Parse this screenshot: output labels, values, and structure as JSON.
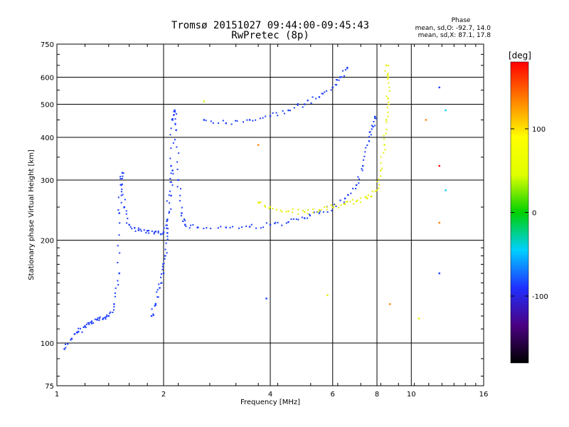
{
  "chart_data": {
    "type": "scatter",
    "title": "Tromsø 20151027 09:44:00-09:45:43",
    "subtitle": "RwPretec (8p)",
    "xlabel": "Frequency [MHz]",
    "ylabel": "Stationary phase Virtual Height [km]",
    "x_scale": "log2",
    "y_scale": "log",
    "xlim": [
      1,
      16
    ],
    "ylim": [
      75,
      750
    ],
    "x_ticks": [
      1,
      2,
      4,
      6,
      8,
      10,
      16
    ],
    "y_ticks": [
      75,
      100,
      200,
      300,
      400,
      500,
      600,
      750
    ],
    "grid": true,
    "phase_info": {
      "title": "Phase",
      "line_o": "mean, sd,O: -92.7, 14.0",
      "line_x": "mean, sd,X:  87.1, 17.8"
    },
    "colorbar": {
      "label": "[deg]",
      "ticks": [
        100,
        0,
        -100
      ],
      "range": [
        -180,
        180
      ],
      "colors": [
        "#000000",
        "#4b0082",
        "#2030ff",
        "#00d0ff",
        "#00d000",
        "#e0ff00",
        "#ffff00",
        "#ff8000",
        "#ff0000"
      ]
    },
    "series": [
      {
        "color": "#1a3cff",
        "x": [
          1.05,
          1.1,
          1.15,
          1.2,
          1.25,
          1.3,
          1.35,
          1.4,
          1.45,
          1.5,
          1.5,
          1.52,
          1.53,
          1.55,
          1.6,
          1.7,
          1.8,
          1.9,
          2.0,
          2.05,
          2.1,
          2.12,
          2.15,
          2.17,
          2.2,
          2.25,
          2.3,
          2.5,
          3.0,
          3.5,
          4.0,
          4.5,
          5.0,
          5.5,
          6.0
        ],
        "y": [
          96,
          103,
          108,
          112,
          115,
          117,
          118,
          120,
          130,
          160,
          240,
          290,
          315,
          250,
          222,
          214,
          213,
          212,
          211,
          230,
          330,
          450,
          480,
          420,
          300,
          240,
          222,
          218,
          218,
          219,
          222,
          226,
          232,
          240,
          250
        ]
      },
      {
        "color": "#1a3cff",
        "x": [
          1.85,
          1.9,
          1.95,
          2.0,
          2.02,
          2.05,
          2.1,
          2.12
        ],
        "y": [
          120,
          130,
          145,
          160,
          180,
          210,
          270,
          320
        ]
      },
      {
        "color": "#1a3cff",
        "x": [
          2.6,
          3.0,
          3.5,
          4.0,
          4.5,
          5.0,
          5.5,
          6.0,
          6.3,
          6.6
        ],
        "y": [
          450,
          440,
          450,
          462,
          480,
          500,
          525,
          560,
          600,
          640
        ]
      },
      {
        "color": "#1a3cff",
        "x": [
          6.0,
          6.5,
          7.0,
          7.3,
          7.6,
          7.8,
          7.9
        ],
        "y": [
          250,
          265,
          290,
          330,
          390,
          430,
          460
        ]
      },
      {
        "color": "#e6ef00",
        "x": [
          3.7,
          4.0,
          4.5,
          5.0,
          5.5,
          6.0,
          6.5,
          7.0,
          7.5,
          8.0,
          8.2,
          8.4,
          8.5,
          8.6,
          8.6,
          8.5
        ],
        "y": [
          258,
          250,
          243,
          242,
          245,
          250,
          255,
          260,
          265,
          280,
          320,
          380,
          450,
          520,
          600,
          650
        ]
      }
    ],
    "outliers": [
      {
        "x": 2.6,
        "y": 510,
        "color": "#c0ff00"
      },
      {
        "x": 3.7,
        "y": 380,
        "color": "#ff8000"
      },
      {
        "x": 3.9,
        "y": 135,
        "color": "#1a3cff"
      },
      {
        "x": 5.8,
        "y": 138,
        "color": "#e6ef00"
      },
      {
        "x": 8.7,
        "y": 130,
        "color": "#ff8000"
      },
      {
        "x": 10.5,
        "y": 118,
        "color": "#e6ef00"
      },
      {
        "x": 12.0,
        "y": 160,
        "color": "#1a3cff"
      },
      {
        "x": 12.0,
        "y": 225,
        "color": "#ff8000"
      },
      {
        "x": 12.5,
        "y": 280,
        "color": "#00d0ff"
      },
      {
        "x": 12.0,
        "y": 330,
        "color": "#ff0000"
      },
      {
        "x": 11.0,
        "y": 450,
        "color": "#ff8000"
      },
      {
        "x": 12.5,
        "y": 480,
        "color": "#00d0ff"
      },
      {
        "x": 12.0,
        "y": 560,
        "color": "#1a3cff"
      }
    ]
  }
}
